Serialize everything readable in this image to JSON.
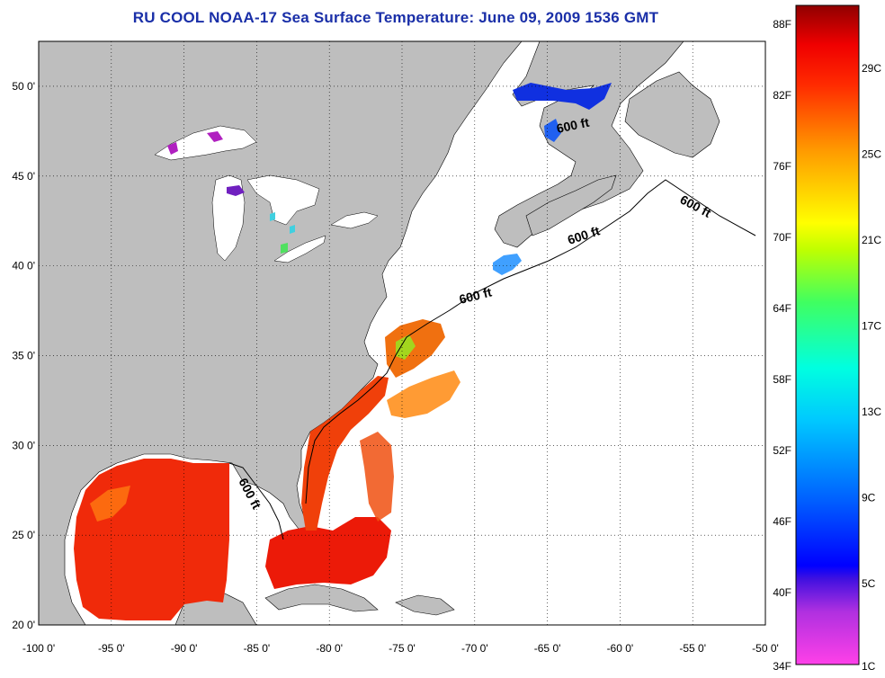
{
  "title": "RU COOL  NOAA-17  Sea Surface Temperature:  June 09, 2009 1536 GMT",
  "map": {
    "lon_range": [
      -100,
      -50
    ],
    "lat_range": [
      20,
      52.5
    ],
    "lat_ticks": [
      {
        "value": 20,
        "label": "20 0'"
      },
      {
        "value": 25,
        "label": "25 0'"
      },
      {
        "value": 30,
        "label": "30 0'"
      },
      {
        "value": 35,
        "label": "35 0'"
      },
      {
        "value": 40,
        "label": "40 0'"
      },
      {
        "value": 45,
        "label": "45 0'"
      },
      {
        "value": 50,
        "label": "50 0'"
      }
    ],
    "lon_ticks": [
      {
        "value": -100,
        "label": "-100 0'"
      },
      {
        "value": -95,
        "label": "-95 0'"
      },
      {
        "value": -90,
        "label": "-90 0'"
      },
      {
        "value": -85,
        "label": "-85 0'"
      },
      {
        "value": -80,
        "label": "-80 0'"
      },
      {
        "value": -75,
        "label": "-75 0'"
      },
      {
        "value": -70,
        "label": "-70 0'"
      },
      {
        "value": -65,
        "label": "-65 0'"
      },
      {
        "value": -60,
        "label": "-60 0'"
      },
      {
        "value": -55,
        "label": "-55 0'"
      },
      {
        "value": -50,
        "label": "-50 0'"
      }
    ],
    "contour_label": "600 ft",
    "land_color": "#bebebe",
    "ocean_color": "#ffffff"
  },
  "colorbar": {
    "fahrenheit": [
      "88F",
      "82F",
      "76F",
      "70F",
      "64F",
      "58F",
      "52F",
      "46F",
      "40F",
      "34F"
    ],
    "celsius": [
      "29C",
      "25C",
      "21C",
      "17C",
      "13C",
      "9C",
      "5C",
      "1C"
    ],
    "colors": [
      "#ff40e0",
      "#8020d0",
      "#0000ff",
      "#00aaff",
      "#00ffff",
      "#00ff80",
      "#80ff00",
      "#ffff00",
      "#ffa000",
      "#ff4000",
      "#ff0000",
      "#a00000"
    ]
  }
}
